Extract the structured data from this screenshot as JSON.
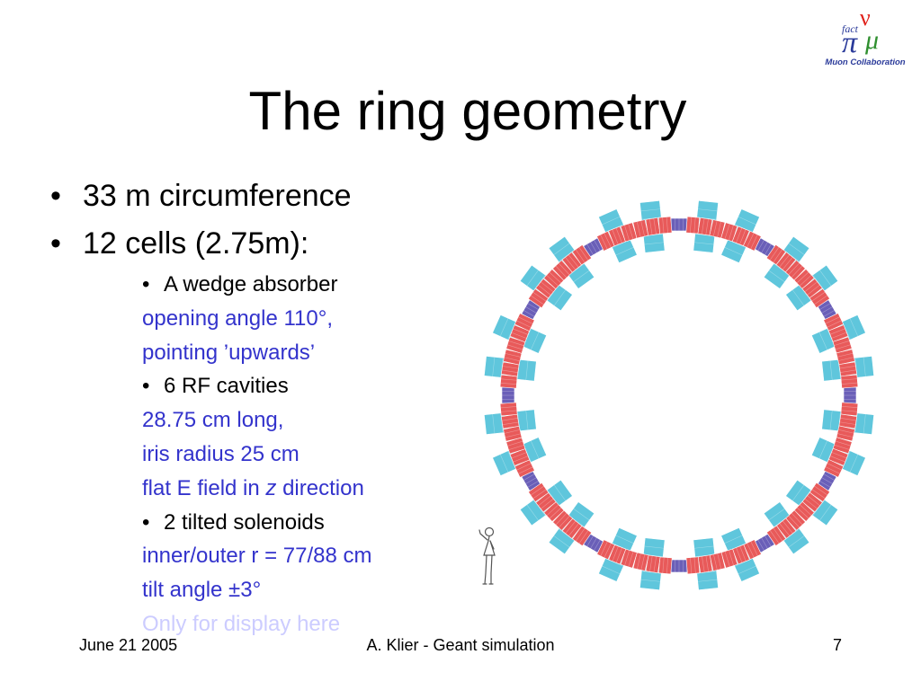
{
  "slide": {
    "title": "The ring geometry",
    "bullets": [
      {
        "text": "33 m circumference"
      },
      {
        "text": "12 cells (2.75m):"
      }
    ],
    "sub_items": [
      {
        "label": "A wedge absorber",
        "details": [
          "opening angle 110°,",
          "pointing ’upwards’"
        ]
      },
      {
        "label": "6 RF cavities",
        "details": [
          "28.75 cm long,",
          "iris radius 25 cm"
        ]
      },
      {
        "label": "2 tilted solenoids",
        "details": [
          "inner/outer r = 77/88 cm",
          "tilt angle ±3°"
        ]
      }
    ],
    "rf_flat_field": {
      "before": "flat E field in ",
      "variable": "z",
      "after": " direction"
    },
    "display_note": "Only for display here"
  },
  "logo": {
    "text_top": "fact",
    "text_bottom": "Muon Collaboration",
    "colors": {
      "red": "#e0201a",
      "blue": "#2a3a9a",
      "green": "#2f8f2f"
    }
  },
  "figure": {
    "cells": 12,
    "colors": {
      "solenoid": "#5fc6dc",
      "rf_cavity": "#e85a5a",
      "absorber": "#6a5fb8"
    }
  },
  "footer": {
    "date": "June 21 2005",
    "center": "A. Klier - Geant simulation",
    "page": "7"
  }
}
